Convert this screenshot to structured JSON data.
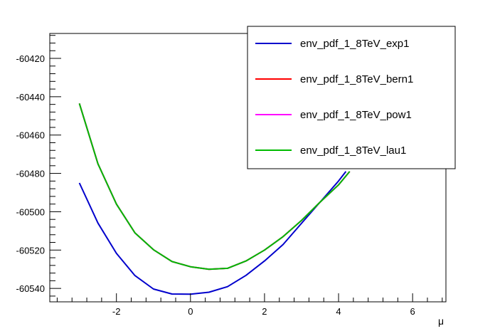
{
  "chart_data": {
    "type": "line",
    "xlabel": "μ",
    "ylabel": "",
    "xlim": [
      -3.8,
      6.9
    ],
    "ylim": [
      -60547,
      -60407
    ],
    "x_ticks": [
      -2,
      0,
      2,
      4,
      6
    ],
    "y_ticks": [
      -60420,
      -60440,
      -60460,
      -60480,
      -60500,
      -60520,
      -60540
    ],
    "grid": false,
    "legend_position": "top-right",
    "series": [
      {
        "name": "env_pdf_1_8TeV_exp1",
        "color": "#0000cc",
        "x": [
          -3.0,
          -2.5,
          -2.0,
          -1.5,
          -1.0,
          -0.5,
          0.0,
          0.5,
          1.0,
          1.5,
          2.0,
          2.5,
          3.0,
          3.5,
          4.0,
          4.2
        ],
        "y": [
          -60485.0,
          -60505.9,
          -60521.7,
          -60533.3,
          -60540.3,
          -60542.9,
          -60543.0,
          -60542.0,
          -60539.1,
          -60533.2,
          -60525.7,
          -60517.1,
          -60506.0,
          -60495.0,
          -60484.0,
          -60479.0
        ]
      },
      {
        "name": "env_pdf_1_8TeV_bern1",
        "color": "#ff0000",
        "x": [
          -3.0,
          -2.5,
          -2.0,
          -1.5,
          -1.0,
          -0.5,
          0.0,
          0.5,
          1.0,
          1.5,
          2.0,
          2.5,
          3.0,
          3.5,
          4.0,
          4.3
        ],
        "y": [
          -60443.5,
          -60475.0,
          -60496.0,
          -60511.0,
          -60519.8,
          -60526.0,
          -60528.7,
          -60530.0,
          -60529.5,
          -60525.7,
          -60520.0,
          -60513.0,
          -60504.5,
          -60495.0,
          -60486.0,
          -60479.0
        ]
      },
      {
        "name": "env_pdf_1_8TeV_pow1",
        "color": "#ff00ff",
        "x": [
          -3.0,
          -2.5,
          -2.0,
          -1.5,
          -1.0,
          -0.5,
          0.0,
          0.5,
          1.0,
          1.5,
          2.0,
          2.5,
          3.0,
          3.5,
          4.0,
          4.3
        ],
        "y": [
          -60443.5,
          -60475.0,
          -60496.0,
          -60511.0,
          -60519.8,
          -60526.0,
          -60528.7,
          -60530.0,
          -60529.5,
          -60525.7,
          -60520.0,
          -60513.0,
          -60504.5,
          -60495.0,
          -60486.0,
          -60479.0
        ]
      },
      {
        "name": "env_pdf_1_8TeV_lau1",
        "color": "#00bb00",
        "x": [
          -3.0,
          -2.5,
          -2.0,
          -1.5,
          -1.0,
          -0.5,
          0.0,
          0.5,
          1.0,
          1.5,
          2.0,
          2.5,
          3.0,
          3.5,
          4.0,
          4.3
        ],
        "y": [
          -60443.5,
          -60475.0,
          -60496.0,
          -60511.0,
          -60519.8,
          -60526.0,
          -60528.7,
          -60530.0,
          -60529.5,
          -60525.7,
          -60520.0,
          -60513.0,
          -60504.5,
          -60495.0,
          -60486.0,
          -60479.0
        ]
      }
    ]
  }
}
